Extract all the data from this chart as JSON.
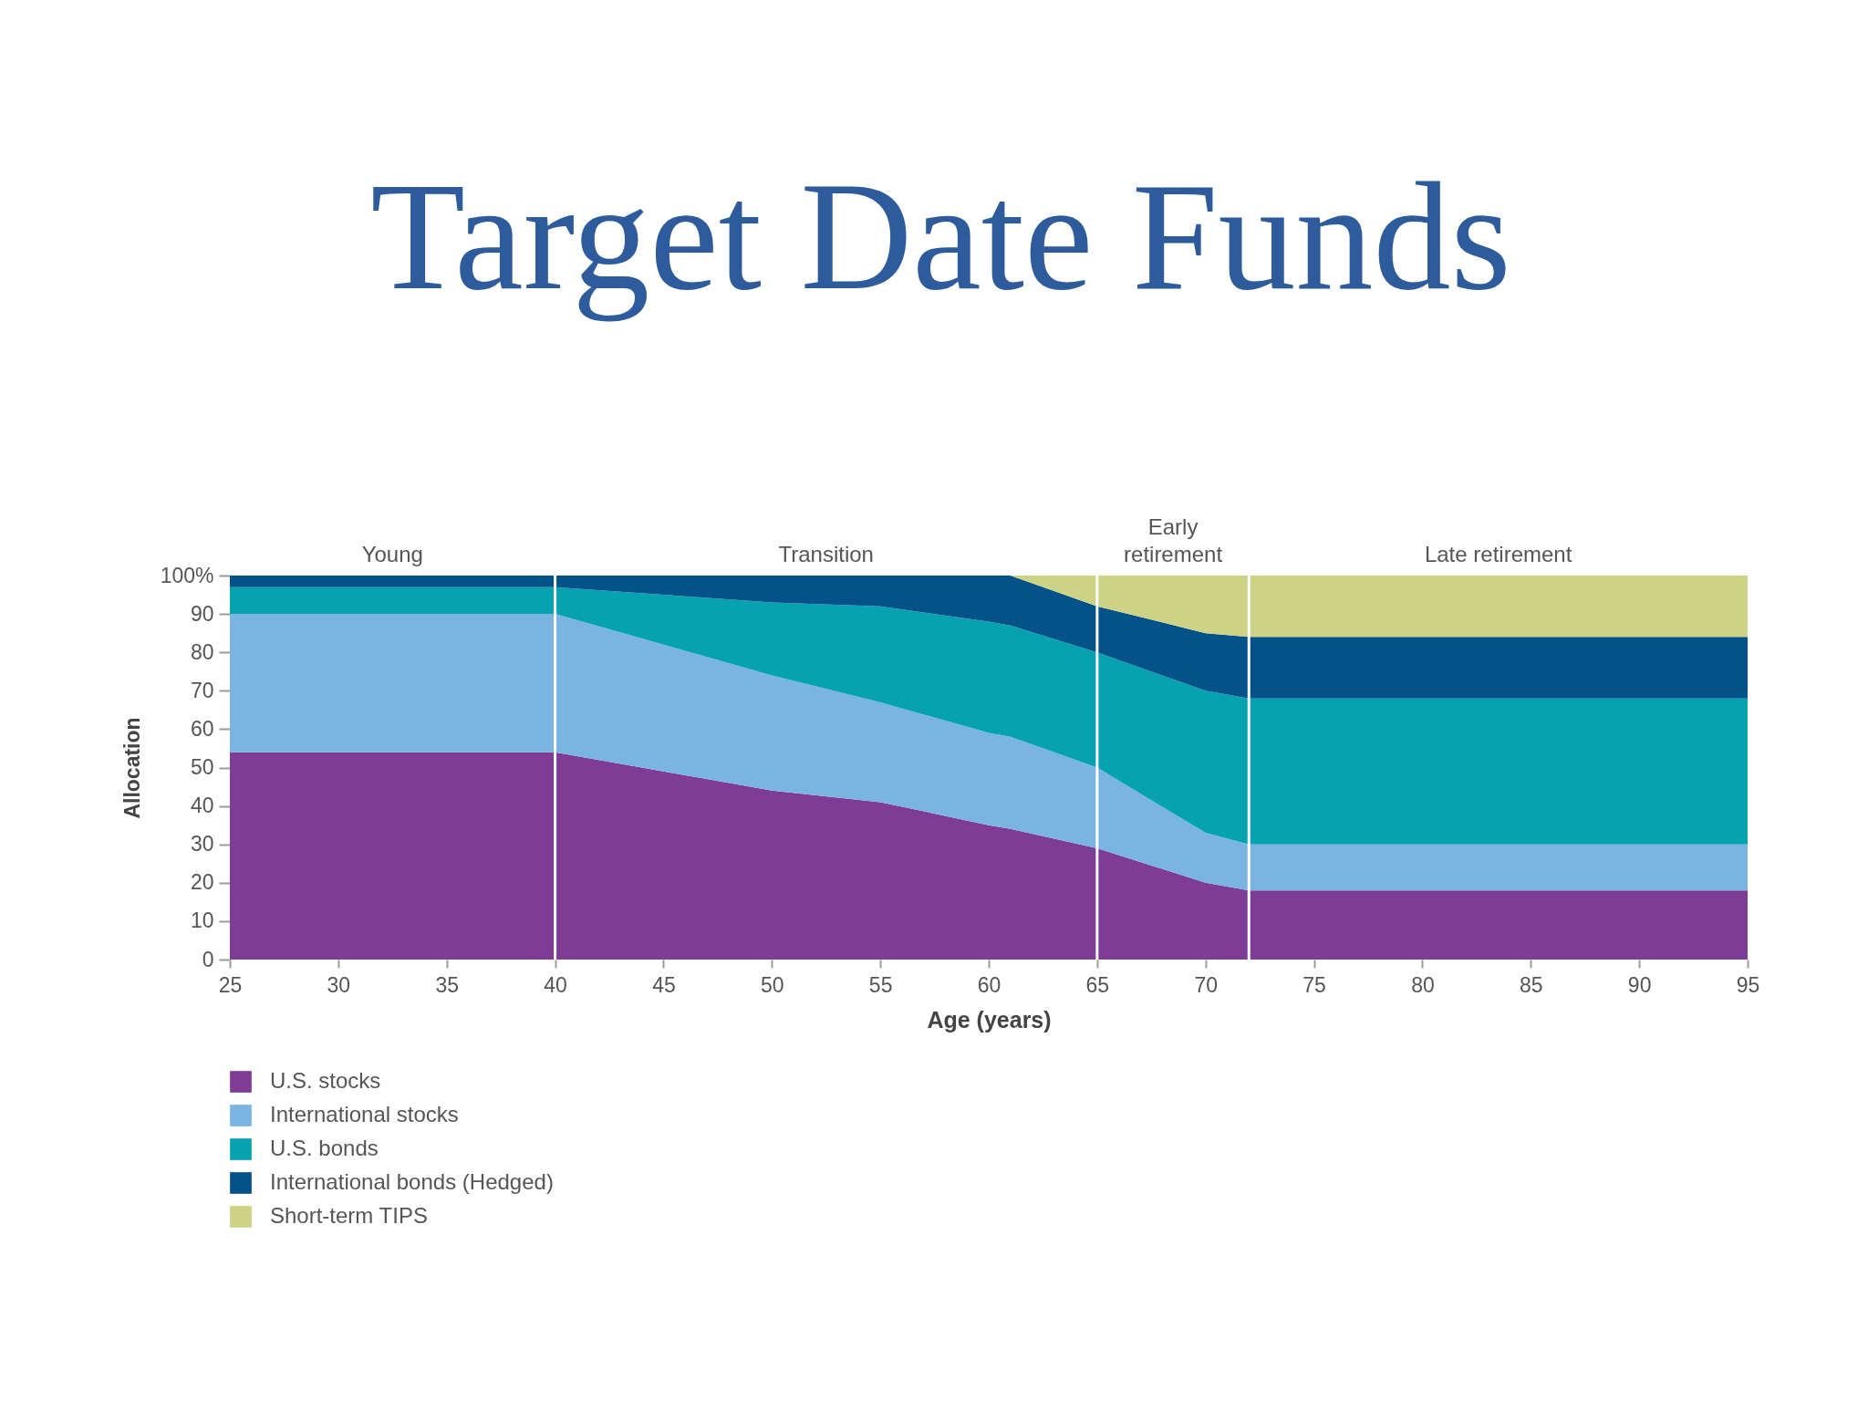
{
  "chart_data": {
    "type": "area",
    "title": "Target Date Funds",
    "xlabel": "Age (years)",
    "ylabel": "Allocation",
    "stacked": true,
    "x": [
      25,
      40,
      45,
      50,
      55,
      60,
      61,
      65,
      70,
      72,
      95
    ],
    "series": [
      {
        "name": "U.S. stocks",
        "color": "#7e3c96",
        "values": [
          54,
          54,
          49,
          44,
          41,
          35,
          34,
          29,
          20,
          18,
          18
        ]
      },
      {
        "name": "International stocks",
        "color": "#7ab5e2",
        "values": [
          36,
          36,
          33,
          30,
          26,
          24,
          24,
          21,
          13,
          12,
          12
        ]
      },
      {
        "name": "U.S. bonds",
        "color": "#06a2b0",
        "values": [
          7,
          7,
          13,
          19,
          25,
          29,
          29,
          30,
          37,
          38,
          38
        ]
      },
      {
        "name": "International bonds (Hedged)",
        "color": "#05518a",
        "values": [
          3,
          3,
          5,
          7,
          8,
          12,
          13,
          12,
          15,
          16,
          16
        ]
      },
      {
        "name": "Short-term TIPS",
        "color": "#cdd385",
        "values": [
          0,
          0,
          0,
          0,
          0,
          0,
          0,
          8,
          15,
          16,
          16
        ]
      }
    ],
    "xlim": [
      25,
      95
    ],
    "ylim": [
      0,
      100
    ],
    "xticks": [
      25,
      30,
      35,
      40,
      45,
      50,
      55,
      60,
      65,
      70,
      75,
      80,
      85,
      90,
      95
    ],
    "yticks": [
      0,
      10,
      20,
      30,
      40,
      50,
      60,
      70,
      80,
      90,
      {
        "value": 100,
        "label": "100%"
      }
    ],
    "ref_lines": [
      {
        "axis": "x",
        "value": 40,
        "color": "#ffffff"
      },
      {
        "axis": "x",
        "value": 65,
        "color": "#ffffff"
      },
      {
        "axis": "x",
        "value": 72,
        "color": "#ffffff"
      }
    ],
    "annotations": [
      {
        "text": "Young",
        "x": 32.5,
        "y": 100
      },
      {
        "text": "Transition",
        "x": 52.5,
        "y": 100
      },
      {
        "text": "Early\nretirement",
        "x": 68.5,
        "y": 100
      },
      {
        "text": "Late retirement",
        "x": 83.5,
        "y": 100
      }
    ],
    "legend": "bottom left",
    "grid": false
  }
}
